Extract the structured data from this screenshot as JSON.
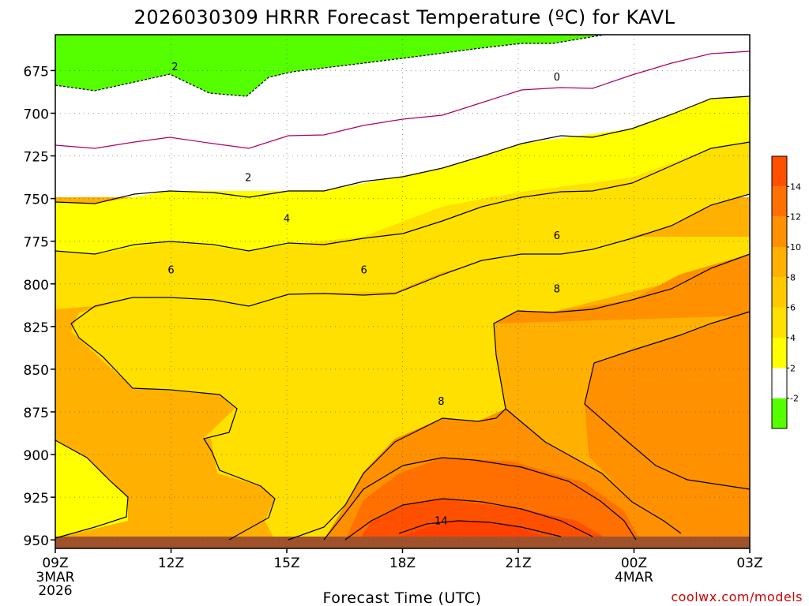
{
  "chart_data": {
    "type": "contour",
    "title": "2026030309 HRRR Forecast Temperature (ºC) for KAVL",
    "xlabel": "Forecast Time (UTC)",
    "credit": "coolwx.com/models",
    "x_ticks": [
      {
        "label": "09Z",
        "hour": 0,
        "sub": [
          "3MAR",
          "2026"
        ]
      },
      {
        "label": "12Z",
        "hour": 3
      },
      {
        "label": "15Z",
        "hour": 6
      },
      {
        "label": "18Z",
        "hour": 9
      },
      {
        "label": "21Z",
        "hour": 12
      },
      {
        "label": "00Z",
        "hour": 15,
        "sub": [
          "4MAR"
        ]
      },
      {
        "label": "03Z",
        "hour": 18
      }
    ],
    "y_ticks": [
      "675",
      "700",
      "725",
      "750",
      "775",
      "800",
      "825",
      "850",
      "875",
      "900",
      "925",
      "950"
    ],
    "y_values": [
      675,
      700,
      725,
      750,
      775,
      800,
      825,
      850,
      875,
      900,
      925,
      950
    ],
    "xlim": [
      0,
      18
    ],
    "ylim_pressure_hpa": [
      654,
      955
    ],
    "colorbar": {
      "levels": [
        "-2",
        "2",
        "4",
        "6",
        "8",
        "10",
        "12",
        "14"
      ],
      "colors": [
        "#55ff00",
        "#ffffff",
        "#ffff00",
        "#ffe000",
        "#ffc800",
        "#ffb000",
        "#ff9000",
        "#ff7000",
        "#ff5000"
      ]
    },
    "contour_labels": [
      {
        "text": "2",
        "hour": 3.1,
        "p": 673
      },
      {
        "text": "0",
        "hour": 13.0,
        "p": 679
      },
      {
        "text": "2",
        "hour": 5.0,
        "p": 738
      },
      {
        "text": "4",
        "hour": 6.0,
        "p": 762
      },
      {
        "text": "6",
        "hour": 3.0,
        "p": 792
      },
      {
        "text": "6",
        "hour": 8.0,
        "p": 792
      },
      {
        "text": "6",
        "hour": 13.0,
        "p": 772
      },
      {
        "text": "8",
        "hour": 13.0,
        "p": 803
      },
      {
        "text": "8",
        "hour": 10.0,
        "p": 869
      },
      {
        "text": "14",
        "hour": 10.0,
        "p": 939
      }
    ]
  }
}
